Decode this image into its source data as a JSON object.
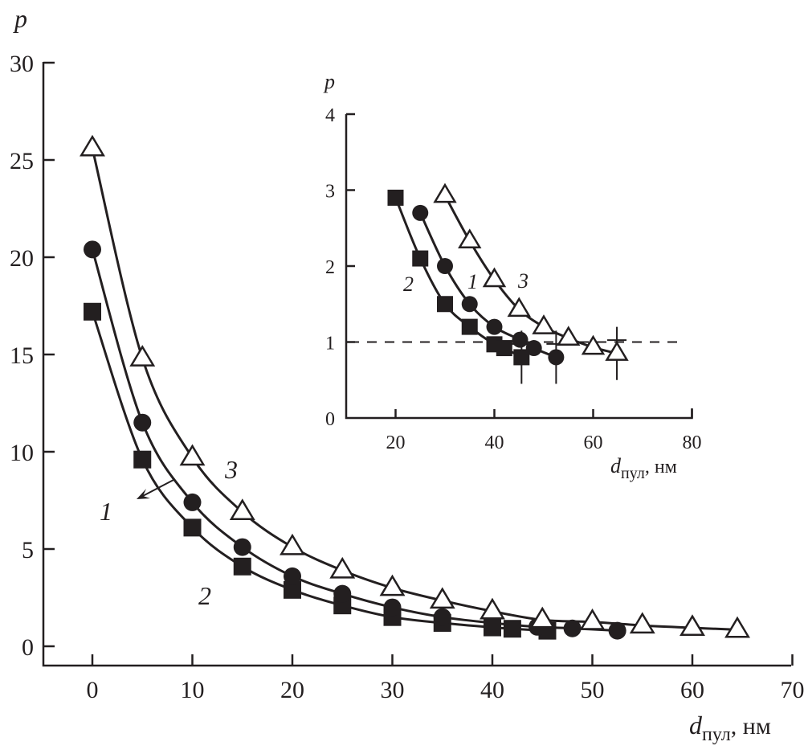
{
  "chart_data": [
    {
      "id": "main",
      "type": "line",
      "title": "",
      "xlabel": {
        "var": "d",
        "sub": "пул",
        "unit": ", нм"
      },
      "ylabel": "p",
      "xlim": [
        -5,
        70
      ],
      "ylim": [
        -1,
        30
      ],
      "xticks": [
        0,
        10,
        20,
        30,
        40,
        50,
        60,
        70
      ],
      "yticks": [
        0,
        5,
        10,
        15,
        20,
        25,
        30
      ],
      "grid": false,
      "series": [
        {
          "name": "1",
          "marker": "circle-filled",
          "x": [
            0,
            5,
            10,
            15,
            20,
            25,
            30,
            35,
            40,
            44.5,
            48,
            52.5
          ],
          "y": [
            20.4,
            11.5,
            7.4,
            5.1,
            3.6,
            2.7,
            2.0,
            1.5,
            1.2,
            1.0,
            0.92,
            0.8
          ]
        },
        {
          "name": "2",
          "marker": "square-filled",
          "x": [
            0,
            5,
            10,
            15,
            20,
            25,
            30,
            35,
            40,
            42,
            45.5
          ],
          "y": [
            17.2,
            9.6,
            6.1,
            4.1,
            2.9,
            2.1,
            1.5,
            1.2,
            0.97,
            0.9,
            0.8
          ]
        },
        {
          "name": "3",
          "marker": "triangle-open",
          "x": [
            0,
            5,
            10,
            15,
            20,
            25,
            30,
            35,
            40,
            45,
            50,
            55,
            60,
            64.5
          ],
          "y": [
            25.6,
            14.8,
            9.7,
            6.9,
            5.1,
            3.9,
            3.0,
            2.35,
            1.8,
            1.35,
            1.25,
            1.07,
            0.95,
            0.85
          ]
        }
      ],
      "annotations": [
        {
          "text": "1",
          "near": "curve 1",
          "arrow": true
        },
        {
          "text": "2",
          "near": "curve 2"
        },
        {
          "text": "3",
          "near": "curve 3"
        }
      ]
    },
    {
      "id": "inset",
      "type": "line",
      "title": "",
      "xlabel": {
        "var": "d",
        "sub": "пул",
        "unit": ", нм"
      },
      "ylabel": "p",
      "xlim": [
        10,
        80
      ],
      "ylim": [
        0,
        4
      ],
      "xticks": [
        20,
        40,
        60,
        80
      ],
      "yticks": [
        0,
        1,
        2,
        3,
        4
      ],
      "grid": false,
      "reference_line": {
        "y": 1,
        "style": "dashed"
      },
      "series": [
        {
          "name": "1",
          "marker": "circle-filled",
          "x": [
            25,
            30,
            35,
            40,
            45.2,
            48,
            52.5
          ],
          "y": [
            2.7,
            2.0,
            1.5,
            1.2,
            1.03,
            0.92,
            0.8
          ],
          "error_bar_at_last": 0.35
        },
        {
          "name": "2",
          "marker": "square-filled",
          "x": [
            20,
            25,
            30,
            35,
            40,
            42,
            45.5
          ],
          "y": [
            2.9,
            2.1,
            1.5,
            1.2,
            0.97,
            0.92,
            0.8
          ],
          "error_bar_at_last": 0.35
        },
        {
          "name": "3",
          "marker": "triangle-open",
          "x": [
            30,
            35,
            40,
            45,
            50,
            55,
            60,
            64.8
          ],
          "y": [
            2.93,
            2.33,
            1.82,
            1.43,
            1.2,
            1.05,
            0.93,
            0.85
          ],
          "error_bar_at_last": 0.35
        }
      ],
      "annotations": [
        {
          "text": "1",
          "near": "curve 1"
        },
        {
          "text": "2",
          "near": "curve 2"
        },
        {
          "text": "3",
          "near": "curve 3"
        }
      ]
    }
  ]
}
